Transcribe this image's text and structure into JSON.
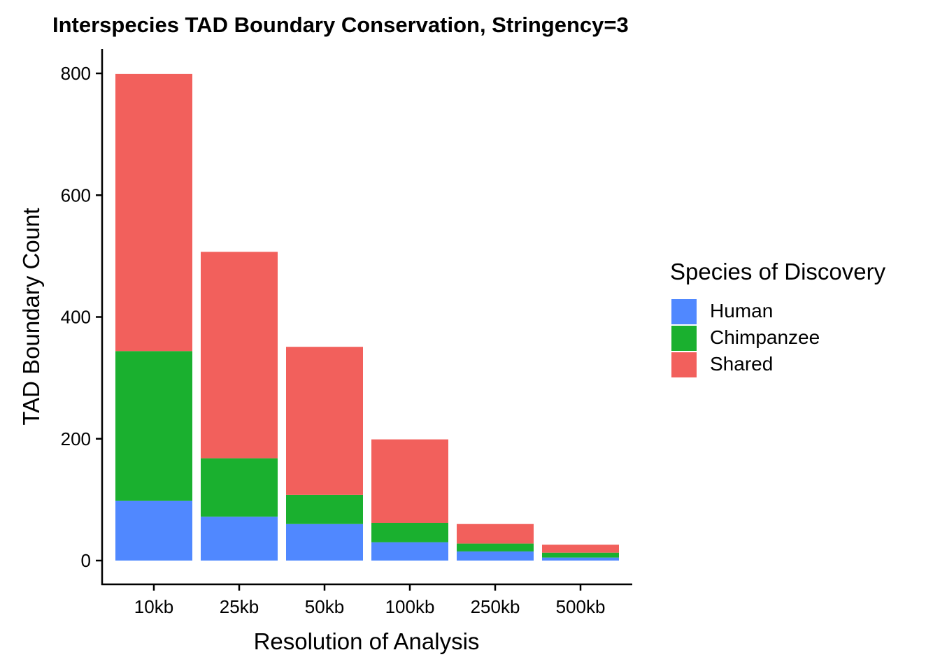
{
  "chart_data": {
    "type": "bar",
    "stacked": true,
    "title": "Interspecies TAD Boundary Conservation, Stringency=3",
    "xlabel": "Resolution of Analysis",
    "ylabel": "TAD Boundary Count",
    "categories": [
      "10kb",
      "25kb",
      "50kb",
      "100kb",
      "250kb",
      "500kb"
    ],
    "ylim": [
      -40,
      840
    ],
    "yticks": [
      0,
      200,
      400,
      600,
      800
    ],
    "grid": false,
    "legend_title": "Species of Discovery",
    "legend_position": "right",
    "series": [
      {
        "name": "Human",
        "color": "#5088FF",
        "values": [
          98,
          72,
          60,
          30,
          15,
          5
        ]
      },
      {
        "name": "Chimpanzee",
        "color": "#1AB02F",
        "values": [
          246,
          96,
          48,
          32,
          13,
          8
        ]
      },
      {
        "name": "Shared",
        "color": "#F2605C",
        "values": [
          455,
          339,
          243,
          137,
          32,
          13
        ]
      }
    ]
  }
}
